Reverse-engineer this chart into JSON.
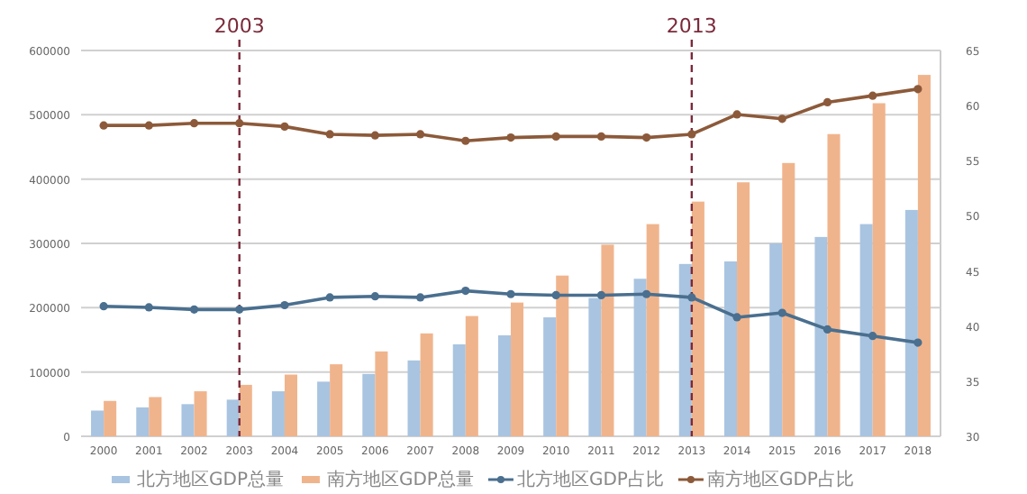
{
  "chart_data": {
    "type": "bar",
    "categories": [
      "2000",
      "2001",
      "2002",
      "2003",
      "2004",
      "2005",
      "2006",
      "2007",
      "2008",
      "2009",
      "2010",
      "2011",
      "2012",
      "2013",
      "2014",
      "2015",
      "2016",
      "2017",
      "2018"
    ],
    "series": [
      {
        "name": "北方地区GDP总量",
        "color": "#a9c4e0",
        "values": [
          40000,
          45000,
          50000,
          57000,
          70000,
          85000,
          97000,
          118000,
          143000,
          157000,
          185000,
          215000,
          245000,
          268000,
          272000,
          300000,
          310000,
          330000,
          352000
        ]
      },
      {
        "name": "南方地区GDP总量",
        "color": "#f0b48c",
        "values": [
          55000,
          61000,
          70000,
          80000,
          96000,
          112000,
          132000,
          160000,
          187000,
          208000,
          250000,
          298000,
          330000,
          365000,
          395000,
          425000,
          470000,
          518000,
          562000
        ]
      },
      {
        "name": "北方地区GDP占比",
        "type": "line",
        "axis": "y2",
        "color": "#4a6f8f",
        "values": [
          41.8,
          41.7,
          41.5,
          41.5,
          41.9,
          42.6,
          42.7,
          42.6,
          43.2,
          42.9,
          42.8,
          42.8,
          42.9,
          42.6,
          40.8,
          41.2,
          39.7,
          39.1,
          38.5
        ]
      },
      {
        "name": "南方地区GDP占比",
        "type": "line",
        "axis": "y2",
        "color": "#8c5a3a",
        "values": [
          58.2,
          58.2,
          58.4,
          58.4,
          58.1,
          57.4,
          57.3,
          57.4,
          56.8,
          57.1,
          57.2,
          57.2,
          57.1,
          57.4,
          59.2,
          58.8,
          60.3,
          60.9,
          61.5
        ]
      }
    ],
    "ylim": [
      0,
      600000
    ],
    "yticks": [
      0,
      100000,
      200000,
      300000,
      400000,
      500000,
      600000
    ],
    "y2lim": [
      30,
      65
    ],
    "y2ticks": [
      30,
      35,
      40,
      45,
      50,
      55,
      60,
      65
    ],
    "ref_lines": [
      {
        "axis": "x",
        "value": "2003",
        "label": "2003",
        "color": "#7a2a3a",
        "line_style": "dashed"
      },
      {
        "axis": "x",
        "value": "2013",
        "label": "2013",
        "color": "#7a2a3a",
        "line_style": "dashed"
      }
    ],
    "grid": "y",
    "legend": "bottom",
    "marker": "circle"
  }
}
